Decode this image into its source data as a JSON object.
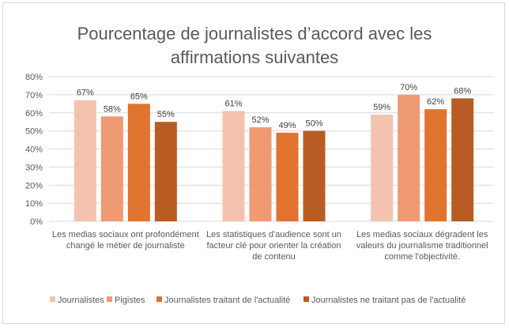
{
  "chart_data": {
    "type": "bar",
    "title_lines": [
      "Pourcentage de journalistes d’accord avec les",
      "affirmations suivantes"
    ],
    "categories": [
      [
        "Les medias sociaux ont profondément",
        "changé le métier de journaliste"
      ],
      [
        "Les statistiques d'audience sont un",
        "facteur clé pour orienter la création",
        "de contenu"
      ],
      [
        "Les medias sociaux dégradent les",
        "valeurs du journalisme traditionnel",
        "comme l'objectivité."
      ]
    ],
    "series": [
      {
        "name": "Journalistes",
        "color": "#f4c3b0",
        "values": [
          67,
          61,
          59
        ],
        "labels": [
          "67%",
          "61%",
          "59%"
        ]
      },
      {
        "name": "Pigistes",
        "color": "#ef9a73",
        "values": [
          58,
          52,
          70
        ],
        "labels": [
          "58%",
          "52%",
          "70%"
        ]
      },
      {
        "name": "Journalistes traitant de l'actualité",
        "color": "#e0732f",
        "values": [
          65,
          49,
          62
        ],
        "labels": [
          "65%",
          "49%",
          "62%"
        ]
      },
      {
        "name": "Journalistes ne traitant pas de l'actualité",
        "color": "#b95c24",
        "values": [
          55,
          50,
          68
        ],
        "labels": [
          "55%",
          "50%",
          "68%"
        ]
      }
    ],
    "yticks": [
      "0%",
      "10%",
      "20%",
      "30%",
      "40%",
      "50%",
      "60%",
      "70%",
      "80%"
    ],
    "ylim": [
      0,
      80
    ],
    "grid": true,
    "legend_position": "bottom"
  }
}
